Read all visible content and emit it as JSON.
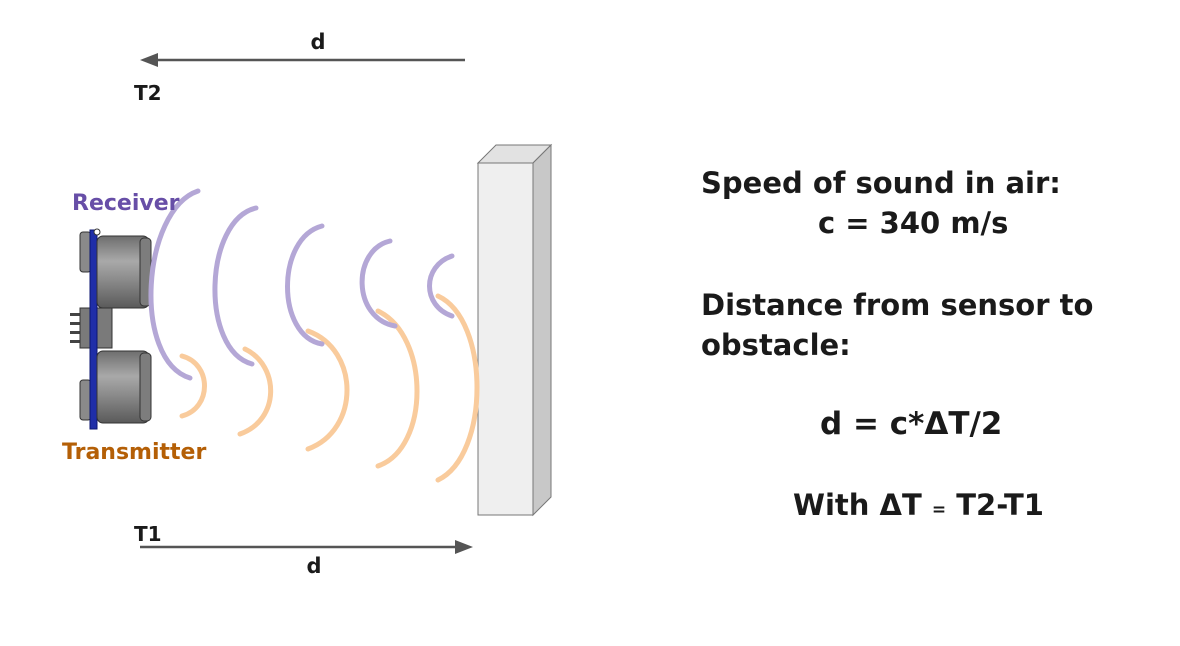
{
  "labels": {
    "top_distance": "d",
    "top_time": "T2",
    "bottom_time": "T1",
    "bottom_distance": "d",
    "receiver": "Receiver",
    "transmitter": "Transmitter"
  },
  "info": {
    "speed_title": "Speed of sound in air:",
    "speed_value": "c = 340 m/s",
    "distance_title": "Distance from sensor to obstacle:",
    "formula": "d = c*ΔT/2",
    "with_prefix": "With ΔT",
    "with_eq": "=",
    "with_suffix": "T2-T1"
  },
  "colors": {
    "receiver_wave": "#b4a7d6",
    "transmitter_wave": "#f9cb9c",
    "receiver_label": "#674ea7",
    "transmitter_label": "#b45f06",
    "arrow": "#555555",
    "board": "#1f2ea8",
    "wall_front": "#efefef",
    "wall_side": "#c8c8c8",
    "wall_top": "#e2e2e2"
  }
}
